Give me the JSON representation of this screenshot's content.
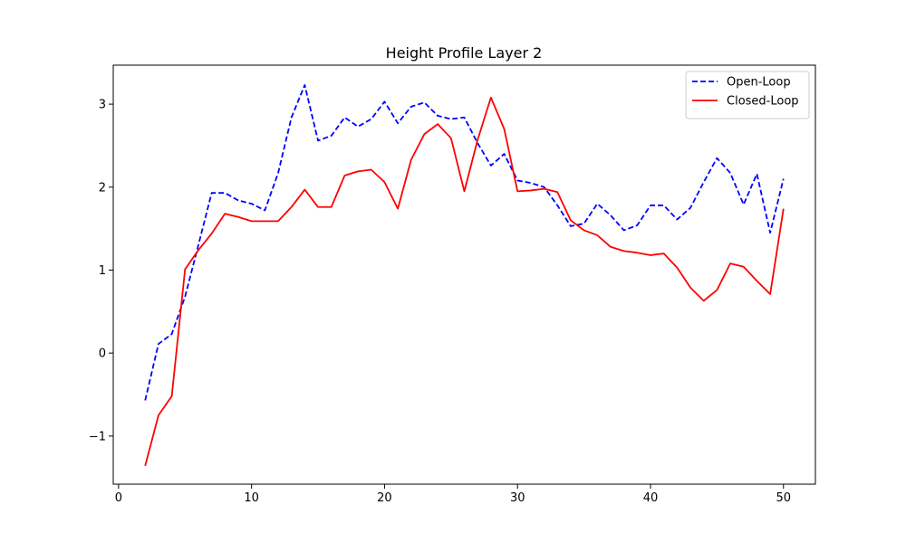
{
  "chart_data": {
    "type": "line",
    "title": "Height Profile Layer 2",
    "xlabel": "",
    "ylabel": "",
    "xlim": [
      -0.4,
      52.4
    ],
    "ylim": [
      -1.58,
      3.47
    ],
    "x_ticks": [
      0,
      10,
      20,
      30,
      40,
      50
    ],
    "y_ticks": [
      -1,
      0,
      1,
      2,
      3
    ],
    "y_tick_labels": [
      "−1",
      "0",
      "1",
      "2",
      "3"
    ],
    "grid": false,
    "legend_position": "top-right",
    "x": [
      2,
      3,
      4,
      5,
      6,
      7,
      8,
      9,
      10,
      11,
      12,
      13,
      14,
      15,
      16,
      17,
      18,
      19,
      20,
      21,
      22,
      23,
      24,
      25,
      26,
      27,
      28,
      29,
      30,
      31,
      32,
      33,
      34,
      35,
      36,
      37,
      38,
      39,
      40,
      41,
      42,
      43,
      44,
      45,
      46,
      47,
      48,
      49,
      50
    ],
    "series": [
      {
        "name": "Open-Loop",
        "color": "#0000ff",
        "style": "dashed",
        "values": [
          -0.57,
          0.11,
          0.23,
          0.68,
          1.3,
          1.93,
          1.93,
          1.84,
          1.8,
          1.72,
          2.17,
          2.84,
          3.23,
          2.56,
          2.62,
          2.84,
          2.73,
          2.82,
          3.03,
          2.77,
          2.97,
          3.02,
          2.86,
          2.82,
          2.84,
          2.53,
          2.26,
          2.4,
          2.08,
          2.05,
          2.0,
          1.78,
          1.53,
          1.56,
          1.8,
          1.66,
          1.48,
          1.54,
          1.78,
          1.78,
          1.61,
          1.75,
          2.06,
          2.35,
          2.17,
          1.79,
          2.16,
          1.45,
          2.1
        ]
      },
      {
        "name": "Closed-Loop",
        "color": "#ff0000",
        "style": "solid",
        "values": [
          -1.36,
          -0.75,
          -0.52,
          1.01,
          1.24,
          1.44,
          1.68,
          1.64,
          1.59,
          1.59,
          1.59,
          1.76,
          1.97,
          1.76,
          1.76,
          2.14,
          2.19,
          2.21,
          2.06,
          1.74,
          2.33,
          2.64,
          2.76,
          2.59,
          1.95,
          2.57,
          3.08,
          2.7,
          1.95,
          1.96,
          1.98,
          1.94,
          1.6,
          1.48,
          1.42,
          1.28,
          1.23,
          1.21,
          1.18,
          1.2,
          1.03,
          0.79,
          0.63,
          0.76,
          1.08,
          1.04,
          0.87,
          0.71,
          1.74
        ]
      }
    ]
  }
}
